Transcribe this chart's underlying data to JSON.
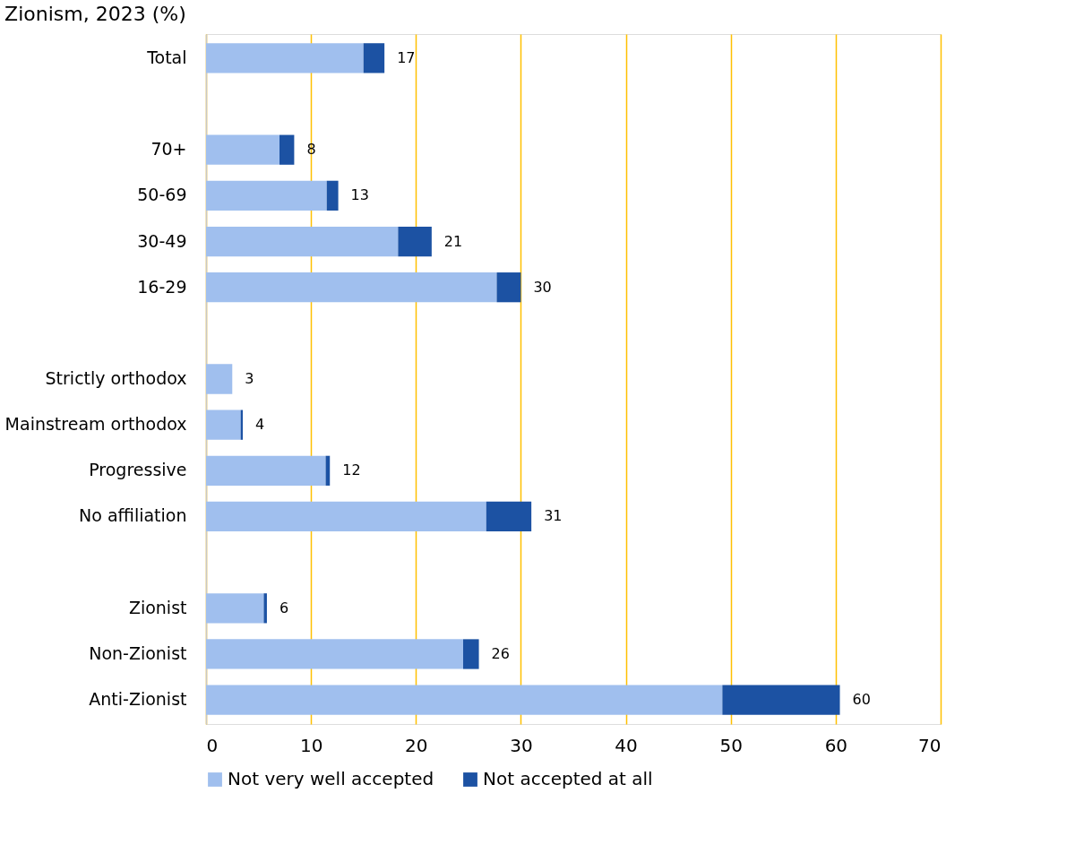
{
  "chart_data": {
    "type": "bar",
    "orientation": "horizontal",
    "stacked": true,
    "title": "Zionism, 2023 (%)",
    "categories": [
      "Total",
      null,
      "70+",
      "50-69",
      "30-49",
      "16-29",
      null,
      "Strictly orthodox",
      "Mainstream orthodox",
      "Progressive",
      "No affiliation",
      null,
      "Zionist",
      "Non-Zionist",
      "Anti-Zionist"
    ],
    "series": [
      {
        "name": "Not very well accepted",
        "color": "#a0bfee",
        "values": [
          15,
          null,
          7,
          11.5,
          18.3,
          27.7,
          null,
          2.5,
          3.3,
          11.4,
          26.7,
          null,
          5.5,
          24.5,
          49.2
        ]
      },
      {
        "name": "Not accepted at all",
        "color": "#1c52a3",
        "values": [
          2,
          null,
          1.4,
          1.1,
          3.2,
          2.3,
          null,
          0,
          0.2,
          0.4,
          4.3,
          null,
          0.3,
          1.5,
          11.2
        ]
      }
    ],
    "totals": [
      "17",
      null,
      "8",
      "13",
      "21",
      "30",
      null,
      "3",
      "4",
      "12",
      "31",
      null,
      "6",
      "26",
      "60"
    ],
    "xlim": [
      0,
      70
    ],
    "xticks": [
      0,
      10,
      20,
      30,
      40,
      50,
      60,
      70
    ],
    "grid": "x",
    "legend": "bottom"
  }
}
